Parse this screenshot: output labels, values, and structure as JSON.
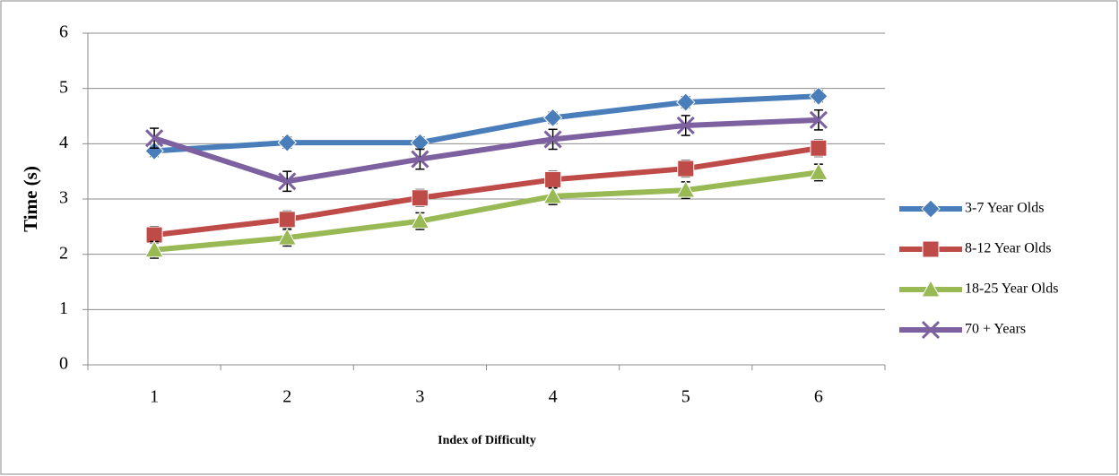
{
  "chart_data": {
    "type": "line",
    "y_label": "Time (s)",
    "x_label": "Index of Difficulty",
    "categories": [
      "1",
      "2",
      "3",
      "4",
      "5",
      "6"
    ],
    "ylim": [
      0,
      6
    ],
    "yticks": [
      0,
      1,
      2,
      3,
      4,
      5,
      6
    ],
    "grid": true,
    "series": [
      {
        "name": "3-7 Year Olds",
        "color": "#4a7ebb",
        "marker": "diamond",
        "values": [
          3.87,
          4.02,
          4.02,
          4.47,
          4.75,
          4.86
        ],
        "errors": [
          0.1,
          0.1,
          0.1,
          0.1,
          0.1,
          0.1
        ]
      },
      {
        "name": "8-12 Year Olds",
        "color": "#be4b48",
        "marker": "square",
        "values": [
          2.35,
          2.63,
          3.02,
          3.35,
          3.55,
          3.92
        ],
        "errors": [
          0.15,
          0.15,
          0.15,
          0.15,
          0.15,
          0.15
        ]
      },
      {
        "name": "18-25 Year Olds",
        "color": "#98b954",
        "marker": "triangle",
        "values": [
          2.08,
          2.3,
          2.6,
          3.05,
          3.16,
          3.48
        ],
        "errors": [
          0.15,
          0.15,
          0.15,
          0.15,
          0.15,
          0.15
        ]
      },
      {
        "name": "70 + Years",
        "color": "#7d60a0",
        "marker": "x",
        "values": [
          4.1,
          3.32,
          3.72,
          4.08,
          4.33,
          4.43
        ],
        "errors": [
          0.18,
          0.18,
          0.18,
          0.18,
          0.18,
          0.18
        ]
      }
    ]
  }
}
